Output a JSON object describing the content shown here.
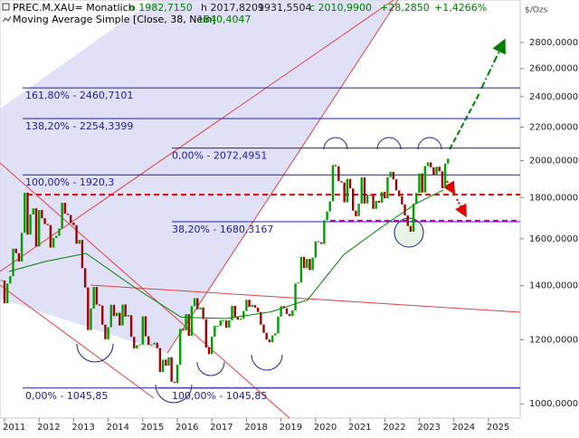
{
  "header": {
    "symbol": "PREC.M.XAU= Monatlich",
    "open": "o 1982,7150",
    "high": "h 2017,8209",
    "low": "1931,5504",
    "close": "c 2010,9900",
    "change": "+28,2850",
    "change_pct": "+1,4266%",
    "indicator": "Moving Average Simple [Close, 38, Nein]",
    "indicator_value": "1840,4047"
  },
  "chart_data": {
    "type": "candlestick",
    "log_scale": true,
    "up_color": "#00a000",
    "down_color": "#a00000",
    "y_unit": "$/Ozs",
    "x": [
      2010.917,
      2011,
      2011.083,
      2011.167,
      2011.25,
      2011.333,
      2011.417,
      2011.5,
      2011.583,
      2011.667,
      2011.75,
      2011.833,
      2011.917,
      2012,
      2012.083,
      2012.167,
      2012.25,
      2012.333,
      2012.417,
      2012.5,
      2012.583,
      2012.667,
      2012.75,
      2012.833,
      2012.917,
      2013,
      2013.083,
      2013.167,
      2013.25,
      2013.333,
      2013.417,
      2013.5,
      2013.583,
      2013.667,
      2013.75,
      2013.833,
      2013.917,
      2014,
      2014.083,
      2014.167,
      2014.25,
      2014.333,
      2014.417,
      2014.5,
      2014.583,
      2014.667,
      2014.75,
      2014.833,
      2014.917,
      2015,
      2015.083,
      2015.167,
      2015.25,
      2015.333,
      2015.417,
      2015.5,
      2015.583,
      2015.667,
      2015.75,
      2015.833,
      2015.917,
      2016,
      2016.083,
      2016.167,
      2016.25,
      2016.333,
      2016.417,
      2016.5,
      2016.583,
      2016.667,
      2016.75,
      2016.833,
      2016.917,
      2017,
      2017.083,
      2017.167,
      2017.25,
      2017.333,
      2017.417,
      2017.5,
      2017.583,
      2017.667,
      2017.75,
      2017.833,
      2017.917,
      2018,
      2018.083,
      2018.167,
      2018.25,
      2018.333,
      2018.417,
      2018.5,
      2018.583,
      2018.667,
      2018.75,
      2018.833,
      2018.917,
      2019,
      2019.083,
      2019.167,
      2019.25,
      2019.333,
      2019.417,
      2019.5,
      2019.583,
      2019.667,
      2019.75,
      2019.833,
      2019.917,
      2020,
      2020.083,
      2020.167,
      2020.25,
      2020.333,
      2020.417,
      2020.5,
      2020.583,
      2020.667,
      2020.75,
      2020.833,
      2020.917,
      2021,
      2021.083,
      2021.167,
      2021.25,
      2021.333,
      2021.417,
      2021.5,
      2021.583,
      2021.667,
      2021.75,
      2021.833,
      2021.917,
      2022,
      2022.083,
      2022.167,
      2022.25,
      2022.333,
      2022.417,
      2022.5,
      2022.583,
      2022.667,
      2022.75,
      2022.833,
      2022.917,
      2023,
      2023.083,
      2023.167,
      2023.25,
      2023.333,
      2023.417,
      2023.5,
      2023.583,
      2023.667,
      2023.75,
      2023.833
    ],
    "values": [
      1421,
      1332,
      1409,
      1439,
      1556,
      1536,
      1500,
      1628,
      1825,
      1620,
      1715,
      1746,
      1566,
      1737,
      1697,
      1669,
      1664,
      1561,
      1604,
      1614,
      1648,
      1773,
      1719,
      1713,
      1676,
      1664,
      1578,
      1595,
      1472,
      1393,
      1234,
      1312,
      1395,
      1327,
      1323,
      1253,
      1202,
      1244,
      1326,
      1284,
      1296,
      1250,
      1327,
      1282,
      1287,
      1210,
      1171,
      1182,
      1184,
      1283,
      1212,
      1183,
      1184,
      1190,
      1172,
      1095,
      1134,
      1115,
      1142,
      1065,
      1061,
      1118,
      1238,
      1233,
      1291,
      1214,
      1321,
      1351,
      1309,
      1316,
      1273,
      1174,
      1152,
      1211,
      1249,
      1249,
      1268,
      1268,
      1242,
      1269,
      1322,
      1280,
      1271,
      1275,
      1303,
      1345,
      1318,
      1325,
      1315,
      1299,
      1253,
      1224,
      1201,
      1192,
      1215,
      1222,
      1282,
      1321,
      1313,
      1292,
      1284,
      1305,
      1409,
      1413,
      1520,
      1472,
      1511,
      1464,
      1517,
      1589,
      1585,
      1577,
      1687,
      1730,
      1781,
      1975,
      1968,
      1886,
      1879,
      1776,
      1898,
      1847,
      1734,
      1707,
      1769,
      1906,
      1770,
      1814,
      1813,
      1743,
      1783,
      1774,
      1829,
      1796,
      1908,
      1937,
      1896,
      1837,
      1807,
      1765,
      1711,
      1660,
      1633,
      1768,
      1824,
      1928,
      1826,
      1969,
      1990,
      1962,
      1919,
      1965,
      1940,
      1849,
      1983,
      2011
    ],
    "moving_average": {
      "color": "#008000",
      "x": [
        2011.13,
        2012.18,
        2013.36,
        2014.8,
        2016.11,
        2017.41,
        2018.72,
        2019.77,
        2020.82,
        2021.87,
        2022.91,
        2023.7
      ],
      "values": [
        1458,
        1500,
        1535,
        1390,
        1280,
        1275,
        1300,
        1345,
        1530,
        1650,
        1770,
        1840
      ]
    },
    "levels": [
      {
        "value": 2460.7101,
        "label": "161,80% - 2460,7101"
      },
      {
        "value": 2254.3399,
        "label": "138,20% - 2254,3399"
      },
      {
        "value": 2072.4951,
        "label": "0,00% - 2072,4951"
      },
      {
        "value": 1920.3,
        "label": "100,00% - 1920,3"
      },
      {
        "value": 1680.3167,
        "label": "38,20% - 1680,3167"
      },
      {
        "value": 1045.85,
        "label": "0,00% - 1045,85"
      },
      {
        "value": 1045.85,
        "label": "100,00% - 1045,85"
      }
    ],
    "level_color": "#2020a0",
    "dashed_levels": [
      {
        "value": 1815,
        "color": "#e00000"
      },
      {
        "value": 1685,
        "color": "#c000c0"
      }
    ],
    "xlim": [
      2010.87,
      2025.92
    ],
    "xticks": [
      2011,
      2012,
      2013,
      2014,
      2015,
      2016,
      2017,
      2018,
      2019,
      2020,
      2021,
      2022,
      2023,
      2024,
      2025
    ],
    "ylim": [
      960,
      3161
    ],
    "yticks": [
      {
        "value": 1000,
        "label": "1000,0000"
      },
      {
        "value": 1200,
        "label": "1200,0000"
      },
      {
        "value": 1400,
        "label": "1400,0000"
      },
      {
        "value": 1600,
        "label": "1600,0000"
      },
      {
        "value": 1800,
        "label": "1800,0000"
      },
      {
        "value": 2000,
        "label": "2000,0000"
      },
      {
        "value": 2200,
        "label": "2200,0000"
      },
      {
        "value": 2400,
        "label": "2400,0000"
      },
      {
        "value": 2600,
        "label": "2600,0000"
      },
      {
        "value": 2800,
        "label": "2800,0000"
      }
    ]
  }
}
